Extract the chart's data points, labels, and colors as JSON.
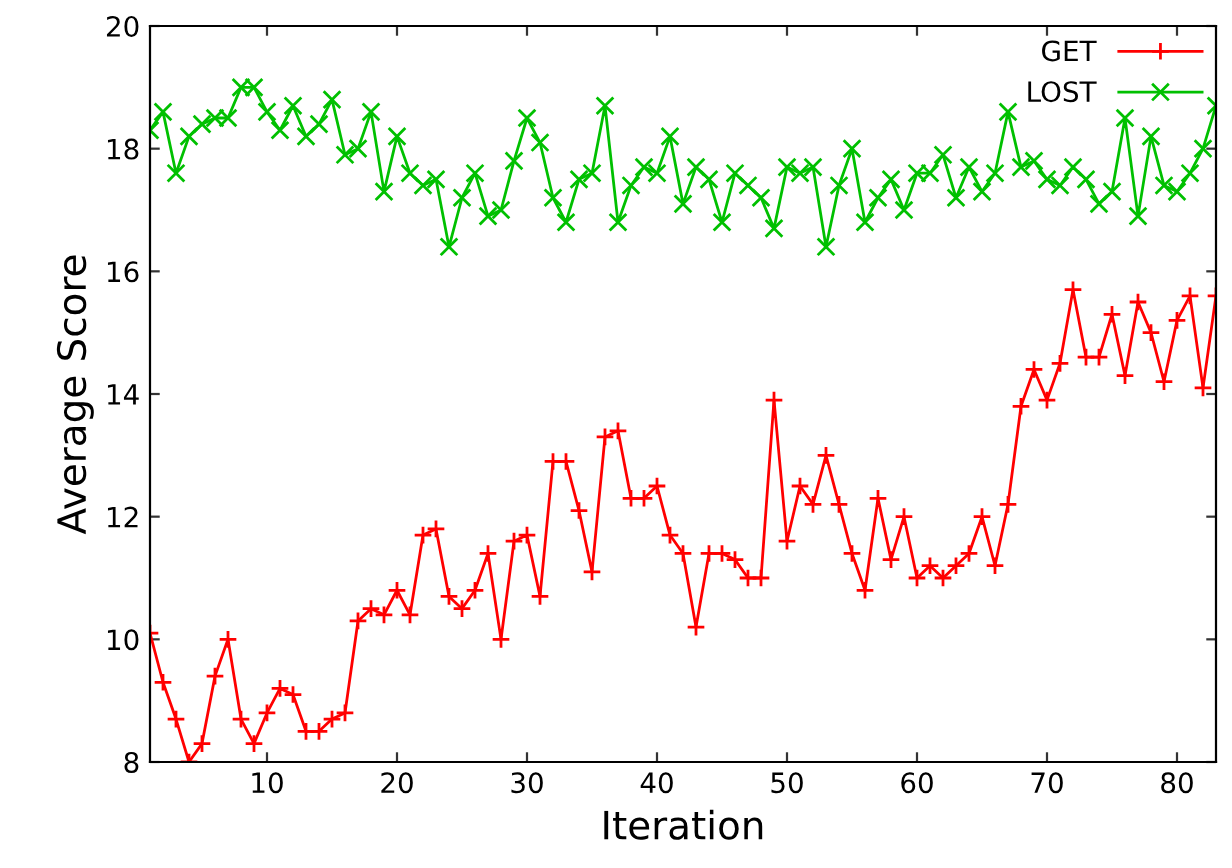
{
  "chart_data": {
    "type": "line",
    "xlabel": "Iteration",
    "ylabel": "Average Score",
    "x": [
      1,
      2,
      3,
      4,
      5,
      6,
      7,
      8,
      9,
      10,
      11,
      12,
      13,
      14,
      15,
      16,
      17,
      18,
      19,
      20,
      21,
      22,
      23,
      24,
      25,
      26,
      27,
      28,
      29,
      30,
      31,
      32,
      33,
      34,
      35,
      36,
      37,
      38,
      39,
      40,
      41,
      42,
      43,
      44,
      45,
      46,
      47,
      48,
      49,
      50,
      51,
      52,
      53,
      54,
      55,
      56,
      57,
      58,
      59,
      60,
      61,
      62,
      63,
      64,
      65,
      66,
      67,
      68,
      69,
      70,
      71,
      72,
      73,
      74,
      75,
      76,
      77,
      78,
      79,
      80,
      81,
      82,
      83
    ],
    "series": [
      {
        "name": "GET",
        "color": "#ff0000",
        "marker": "plus",
        "values": [
          10.1,
          9.3,
          8.7,
          8.0,
          8.3,
          9.4,
          10.0,
          8.7,
          8.3,
          8.8,
          9.2,
          9.1,
          8.5,
          8.5,
          8.7,
          8.8,
          10.3,
          10.5,
          10.4,
          10.8,
          10.4,
          11.7,
          11.8,
          10.7,
          10.5,
          10.8,
          11.4,
          10.0,
          11.6,
          11.7,
          10.7,
          12.9,
          12.9,
          12.1,
          11.1,
          13.3,
          13.4,
          12.3,
          12.3,
          12.5,
          11.7,
          11.4,
          10.2,
          11.4,
          11.4,
          11.3,
          11.0,
          11.0,
          13.9,
          11.6,
          12.5,
          12.2,
          13.0,
          12.2,
          11.4,
          10.8,
          12.3,
          11.3,
          12.0,
          11.0,
          11.2,
          11.0,
          11.2,
          11.4,
          12.0,
          11.2,
          12.2,
          13.8,
          14.4,
          13.9,
          14.5,
          15.7,
          14.6,
          14.6,
          15.3,
          14.3,
          15.5,
          15.0,
          14.2,
          15.2,
          15.6,
          14.1,
          15.6
        ]
      },
      {
        "name": "LOST",
        "color": "#00c000",
        "marker": "cross",
        "values": [
          18.3,
          18.6,
          17.6,
          18.2,
          18.4,
          18.5,
          18.5,
          19.0,
          19.0,
          18.6,
          18.3,
          18.7,
          18.2,
          18.4,
          18.8,
          17.9,
          18.0,
          18.6,
          17.3,
          18.2,
          17.6,
          17.4,
          17.5,
          16.4,
          17.2,
          17.6,
          16.9,
          17.0,
          17.8,
          18.5,
          18.1,
          17.2,
          16.8,
          17.5,
          17.6,
          18.7,
          16.8,
          17.4,
          17.7,
          17.6,
          18.2,
          17.1,
          17.7,
          17.5,
          16.8,
          17.6,
          17.4,
          17.2,
          16.7,
          17.7,
          17.6,
          17.7,
          16.4,
          17.4,
          18.0,
          16.8,
          17.2,
          17.5,
          17.0,
          17.6,
          17.6,
          17.9,
          17.2,
          17.7,
          17.3,
          17.6,
          18.6,
          17.7,
          17.8,
          17.5,
          17.4,
          17.7,
          17.5,
          17.1,
          17.3,
          18.5,
          16.9,
          18.2,
          17.4,
          17.3,
          17.6,
          18.0,
          18.7
        ]
      }
    ],
    "xlim": [
      1,
      83
    ],
    "xticks": [
      10,
      20,
      30,
      40,
      50,
      60,
      70,
      80
    ],
    "ylim": [
      8,
      20
    ],
    "yticks": [
      8,
      10,
      12,
      14,
      16,
      18,
      20
    ],
    "grid": false,
    "legend": "top right",
    "line_style": "solid"
  }
}
